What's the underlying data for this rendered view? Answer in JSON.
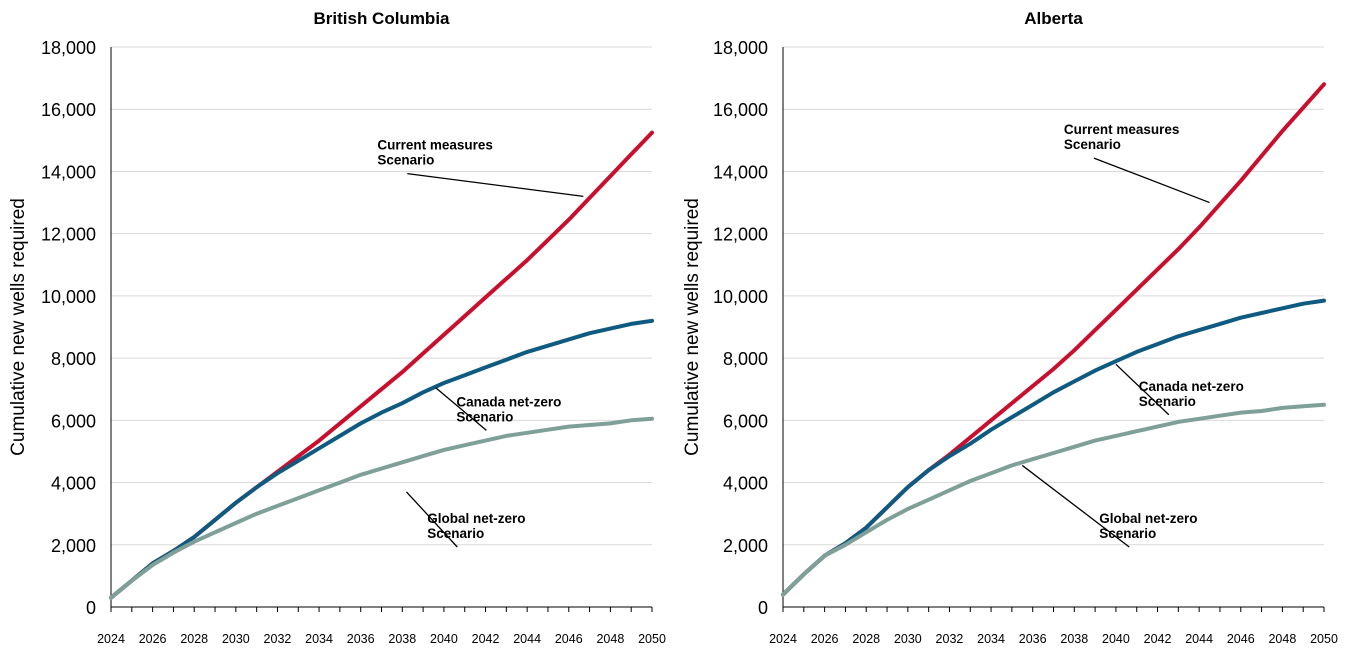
{
  "chart_data": [
    {
      "type": "line",
      "title": "British Columbia",
      "ylabel": "Cumulative new wells required",
      "xlabel": "",
      "xlim": [
        2024,
        2050
      ],
      "ylim": [
        0,
        18000
      ],
      "y_ticks": [
        "0",
        "2,000",
        "4,000",
        "6,000",
        "8,000",
        "10,000",
        "12,000",
        "14,000",
        "16,000",
        "18,000"
      ],
      "x_ticks": [
        "2024",
        "2026",
        "2028",
        "2030",
        "2032",
        "2034",
        "2036",
        "2038",
        "2040",
        "2042",
        "2044",
        "2046",
        "2048",
        "2050"
      ],
      "grid": true,
      "x": [
        2024,
        2025,
        2026,
        2027,
        2028,
        2029,
        2030,
        2031,
        2032,
        2033,
        2034,
        2035,
        2036,
        2037,
        2038,
        2039,
        2040,
        2041,
        2042,
        2043,
        2044,
        2045,
        2046,
        2047,
        2048,
        2049,
        2050
      ],
      "series": [
        {
          "name": "Current measures Scenario",
          "label_lines": [
            "Current measures",
            "Scenario"
          ],
          "color": "#c8102e",
          "values": [
            300,
            850,
            1400,
            1800,
            2250,
            2800,
            3350,
            3850,
            4350,
            4850,
            5350,
            5900,
            6450,
            7000,
            7550,
            8150,
            8750,
            9350,
            9950,
            10550,
            11150,
            11800,
            12450,
            13150,
            13850,
            14550,
            15250
          ]
        },
        {
          "name": "Canada net-zero Scenario",
          "label_lines": [
            "Canada net-zero",
            "Scenario"
          ],
          "color": "#0f5a80",
          "values": [
            300,
            850,
            1400,
            1800,
            2250,
            2800,
            3350,
            3850,
            4300,
            4700,
            5100,
            5500,
            5900,
            6250,
            6550,
            6900,
            7200,
            7450,
            7700,
            7950,
            8200,
            8400,
            8600,
            8800,
            8950,
            9100,
            9200
          ]
        },
        {
          "name": "Global net-zero Scenario",
          "label_lines": [
            "Global net-zero",
            "Scenario"
          ],
          "color": "#7fa098",
          "values": [
            300,
            850,
            1350,
            1750,
            2100,
            2400,
            2700,
            3000,
            3250,
            3500,
            3750,
            4000,
            4250,
            4450,
            4650,
            4850,
            5050,
            5200,
            5350,
            5500,
            5600,
            5700,
            5800,
            5850,
            5900,
            6000,
            6050
          ]
        }
      ],
      "annotations": [
        {
          "series": 0,
          "text_x": 2036.8,
          "text_y": 14700,
          "point_x": 2046.7,
          "point_y": 13200
        },
        {
          "series": 1,
          "text_x": 2040.6,
          "text_y": 6450,
          "point_x": 2039.6,
          "point_y": 7050
        },
        {
          "series": 2,
          "text_x": 2039.2,
          "text_y": 2700,
          "point_x": 2038.2,
          "point_y": 3700
        }
      ]
    },
    {
      "type": "line",
      "title": "Alberta",
      "ylabel": "Cumulative new wells required",
      "xlabel": "",
      "xlim": [
        2024,
        2050
      ],
      "ylim": [
        0,
        18000
      ],
      "y_ticks": [
        "0",
        "2,000",
        "4,000",
        "6,000",
        "8,000",
        "10,000",
        "12,000",
        "14,000",
        "16,000",
        "18,000"
      ],
      "x_ticks": [
        "2024",
        "2026",
        "2028",
        "2030",
        "2032",
        "2034",
        "2036",
        "2038",
        "2040",
        "2042",
        "2044",
        "2046",
        "2048",
        "2050"
      ],
      "grid": true,
      "x": [
        2024,
        2025,
        2026,
        2027,
        2028,
        2029,
        2030,
        2031,
        2032,
        2033,
        2034,
        2035,
        2036,
        2037,
        2038,
        2039,
        2040,
        2041,
        2042,
        2043,
        2044,
        2045,
        2046,
        2047,
        2048,
        2049,
        2050
      ],
      "series": [
        {
          "name": "Current measures Scenario",
          "label_lines": [
            "Current measures",
            "Scenario"
          ],
          "color": "#c8102e",
          "values": [
            400,
            1050,
            1650,
            2050,
            2550,
            3200,
            3850,
            4400,
            4900,
            5450,
            6000,
            6550,
            7100,
            7650,
            8250,
            8900,
            9550,
            10200,
            10850,
            11500,
            12200,
            12950,
            13700,
            14500,
            15300,
            16050,
            16800
          ]
        },
        {
          "name": "Canada net-zero Scenario",
          "label_lines": [
            "Canada net-zero",
            "Scenario"
          ],
          "color": "#0f5a80",
          "values": [
            400,
            1050,
            1650,
            2050,
            2550,
            3200,
            3850,
            4400,
            4850,
            5250,
            5700,
            6100,
            6500,
            6900,
            7250,
            7600,
            7900,
            8200,
            8450,
            8700,
            8900,
            9100,
            9300,
            9450,
            9600,
            9750,
            9850
          ]
        },
        {
          "name": "Global net-zero Scenario",
          "label_lines": [
            "Global net-zero",
            "Scenario"
          ],
          "color": "#7fa098",
          "values": [
            400,
            1050,
            1650,
            2000,
            2400,
            2800,
            3150,
            3450,
            3750,
            4050,
            4300,
            4550,
            4750,
            4950,
            5150,
            5350,
            5500,
            5650,
            5800,
            5950,
            6050,
            6150,
            6250,
            6300,
            6400,
            6450,
            6500
          ]
        }
      ],
      "annotations": [
        {
          "series": 0,
          "text_x": 2037.5,
          "text_y": 15200,
          "point_x": 2044.5,
          "point_y": 13000
        },
        {
          "series": 1,
          "text_x": 2041.1,
          "text_y": 6950,
          "point_x": 2040.0,
          "point_y": 7800
        },
        {
          "series": 2,
          "text_x": 2039.2,
          "text_y": 2700,
          "point_x": 2035.5,
          "point_y": 4550
        }
      ]
    }
  ]
}
